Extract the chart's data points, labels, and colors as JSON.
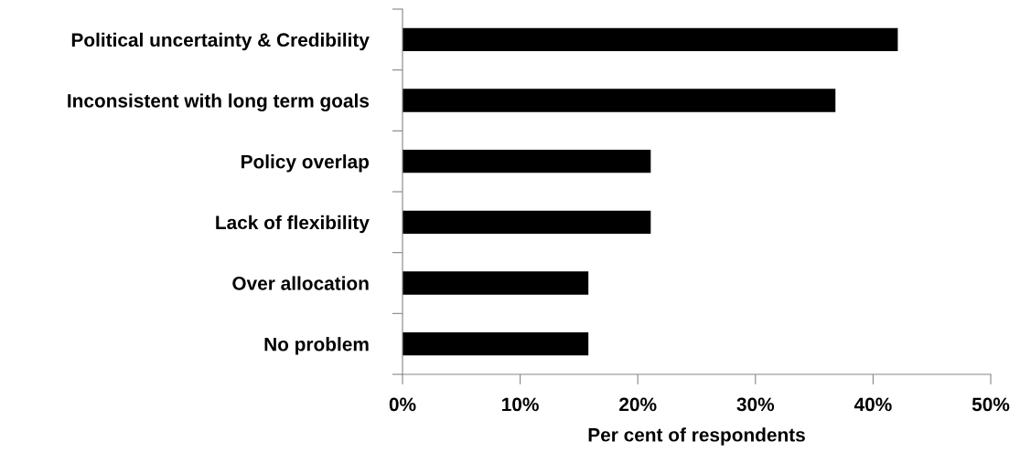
{
  "chart_data": {
    "type": "bar",
    "orientation": "horizontal",
    "categories": [
      "Political uncertainty & Credibility",
      "Inconsistent with long term goals",
      "Policy overlap",
      "Lack of flexibility",
      "Over allocation",
      "No problem"
    ],
    "values": [
      42.1,
      36.8,
      21.1,
      21.1,
      15.8,
      15.8
    ],
    "color": "#000000",
    "xlabel": "Per cent of respondents",
    "xlim": [
      0,
      50
    ],
    "xticks": [
      {
        "value": 0,
        "label": "0%"
      },
      {
        "value": 10,
        "label": "10%"
      },
      {
        "value": 20,
        "label": "20%"
      },
      {
        "value": 30,
        "label": "30%"
      },
      {
        "value": 40,
        "label": "40%"
      },
      {
        "value": 50,
        "label": "50%"
      }
    ],
    "grid": false,
    "legend": false
  }
}
